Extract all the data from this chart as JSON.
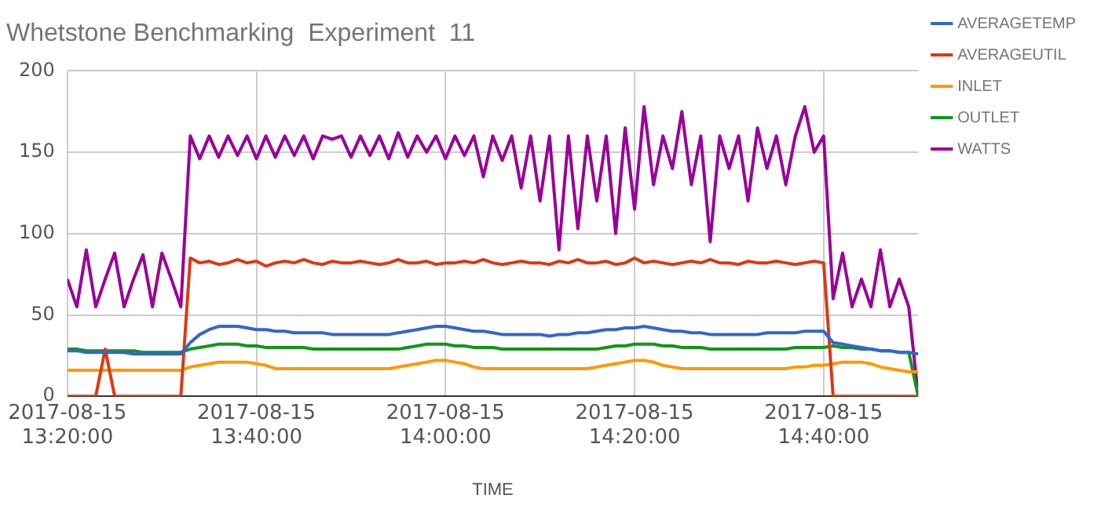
{
  "chart_data": {
    "type": "line",
    "title": "Whetstone Benchmarking  Experiment  11",
    "xlabel": "TIME",
    "x": [
      "2017-08-15T13:20",
      "2017-08-15T13:21",
      "2017-08-15T13:22",
      "2017-08-15T13:23",
      "2017-08-15T13:24",
      "2017-08-15T13:25",
      "2017-08-15T13:26",
      "2017-08-15T13:27",
      "2017-08-15T13:28",
      "2017-08-15T13:29",
      "2017-08-15T13:30",
      "2017-08-15T13:31",
      "2017-08-15T13:32",
      "2017-08-15T13:33",
      "2017-08-15T13:34",
      "2017-08-15T13:35",
      "2017-08-15T13:36",
      "2017-08-15T13:37",
      "2017-08-15T13:38",
      "2017-08-15T13:39",
      "2017-08-15T13:40",
      "2017-08-15T13:41",
      "2017-08-15T13:42",
      "2017-08-15T13:43",
      "2017-08-15T13:44",
      "2017-08-15T13:45",
      "2017-08-15T13:46",
      "2017-08-15T13:47",
      "2017-08-15T13:48",
      "2017-08-15T13:49",
      "2017-08-15T13:50",
      "2017-08-15T13:51",
      "2017-08-15T13:52",
      "2017-08-15T13:53",
      "2017-08-15T13:54",
      "2017-08-15T13:55",
      "2017-08-15T13:56",
      "2017-08-15T13:57",
      "2017-08-15T13:58",
      "2017-08-15T13:59",
      "2017-08-15T14:00",
      "2017-08-15T14:01",
      "2017-08-15T14:02",
      "2017-08-15T14:03",
      "2017-08-15T14:04",
      "2017-08-15T14:05",
      "2017-08-15T14:06",
      "2017-08-15T14:07",
      "2017-08-15T14:08",
      "2017-08-15T14:09",
      "2017-08-15T14:10",
      "2017-08-15T14:11",
      "2017-08-15T14:12",
      "2017-08-15T14:13",
      "2017-08-15T14:14",
      "2017-08-15T14:15",
      "2017-08-15T14:16",
      "2017-08-15T14:17",
      "2017-08-15T14:18",
      "2017-08-15T14:19",
      "2017-08-15T14:20",
      "2017-08-15T14:21",
      "2017-08-15T14:22",
      "2017-08-15T14:23",
      "2017-08-15T14:24",
      "2017-08-15T14:25",
      "2017-08-15T14:26",
      "2017-08-15T14:27",
      "2017-08-15T14:28",
      "2017-08-15T14:29",
      "2017-08-15T14:30",
      "2017-08-15T14:31",
      "2017-08-15T14:32",
      "2017-08-15T14:33",
      "2017-08-15T14:34",
      "2017-08-15T14:35",
      "2017-08-15T14:36",
      "2017-08-15T14:37",
      "2017-08-15T14:38",
      "2017-08-15T14:39",
      "2017-08-15T14:40",
      "2017-08-15T14:41",
      "2017-08-15T14:42",
      "2017-08-15T14:43",
      "2017-08-15T14:44",
      "2017-08-15T14:45",
      "2017-08-15T14:46",
      "2017-08-15T14:47",
      "2017-08-15T14:48",
      "2017-08-15T14:49",
      "2017-08-15T14:50"
    ],
    "series": [
      {
        "name": "AVERAGETEMP",
        "color": "#3366cc",
        "values": [
          28,
          28,
          27,
          27,
          27,
          27,
          27,
          26,
          26,
          26,
          26,
          26,
          26,
          33,
          38,
          41,
          43,
          43,
          43,
          42,
          41,
          41,
          40,
          40,
          39,
          39,
          39,
          39,
          38,
          38,
          38,
          38,
          38,
          38,
          38,
          39,
          40,
          41,
          42,
          43,
          43,
          42,
          41,
          40,
          40,
          39,
          38,
          38,
          38,
          38,
          38,
          37,
          38,
          38,
          39,
          39,
          40,
          41,
          41,
          42,
          42,
          43,
          42,
          41,
          40,
          40,
          39,
          39,
          38,
          38,
          38,
          38,
          38,
          38,
          39,
          39,
          39,
          39,
          40,
          40,
          40,
          33,
          32,
          31,
          30,
          29,
          28,
          28,
          27,
          27,
          26
        ]
      },
      {
        "name": "AVERAGEUTIL",
        "color": "#dc3912",
        "values": [
          0,
          0,
          0,
          0,
          29,
          0,
          0,
          0,
          0,
          0,
          0,
          0,
          0,
          85,
          82,
          83,
          81,
          82,
          84,
          82,
          83,
          80,
          82,
          83,
          82,
          84,
          82,
          81,
          83,
          82,
          82,
          83,
          82,
          81,
          82,
          84,
          82,
          82,
          83,
          81,
          82,
          82,
          83,
          82,
          84,
          82,
          81,
          82,
          83,
          82,
          82,
          81,
          83,
          82,
          84,
          82,
          82,
          83,
          81,
          82,
          85,
          82,
          83,
          82,
          81,
          82,
          83,
          82,
          84,
          82,
          82,
          81,
          83,
          82,
          82,
          83,
          82,
          81,
          82,
          83,
          82,
          0,
          0,
          0,
          0,
          0,
          0,
          0,
          0,
          0,
          0
        ]
      },
      {
        "name": "INLET",
        "color": "#ff9900",
        "values": [
          16,
          16,
          16,
          16,
          16,
          16,
          16,
          16,
          16,
          16,
          16,
          16,
          16,
          18,
          19,
          20,
          21,
          21,
          21,
          21,
          20,
          19,
          17,
          17,
          17,
          17,
          17,
          17,
          17,
          17,
          17,
          17,
          17,
          17,
          17,
          18,
          19,
          20,
          21,
          22,
          22,
          21,
          20,
          18,
          17,
          17,
          17,
          17,
          17,
          17,
          17,
          17,
          17,
          17,
          17,
          17,
          18,
          19,
          20,
          21,
          22,
          22,
          21,
          19,
          18,
          17,
          17,
          17,
          17,
          17,
          17,
          17,
          17,
          17,
          17,
          17,
          17,
          18,
          18,
          19,
          19,
          20,
          21,
          21,
          21,
          20,
          18,
          17,
          16,
          15,
          15
        ]
      },
      {
        "name": "OUTLET",
        "color": "#109618",
        "values": [
          29,
          29,
          28,
          28,
          28,
          28,
          28,
          28,
          27,
          27,
          27,
          27,
          27,
          29,
          30,
          31,
          32,
          32,
          32,
          31,
          31,
          30,
          30,
          30,
          30,
          30,
          29,
          29,
          29,
          29,
          29,
          29,
          29,
          29,
          29,
          29,
          30,
          31,
          32,
          32,
          32,
          31,
          31,
          30,
          30,
          30,
          29,
          29,
          29,
          29,
          29,
          29,
          29,
          29,
          29,
          29,
          29,
          30,
          31,
          31,
          32,
          32,
          32,
          31,
          31,
          30,
          30,
          30,
          29,
          29,
          29,
          29,
          29,
          29,
          29,
          29,
          29,
          30,
          30,
          30,
          30,
          31,
          30,
          30,
          29,
          29,
          28,
          28,
          27,
          27,
          0
        ]
      },
      {
        "name": "WATTS",
        "color": "#990099",
        "values": [
          72,
          55,
          90,
          55,
          72,
          88,
          55,
          72,
          87,
          55,
          88,
          72,
          55,
          160,
          146,
          160,
          147,
          160,
          148,
          160,
          146,
          160,
          147,
          160,
          148,
          160,
          146,
          160,
          158,
          160,
          147,
          160,
          148,
          160,
          146,
          162,
          147,
          160,
          150,
          160,
          146,
          160,
          148,
          160,
          135,
          160,
          145,
          160,
          128,
          160,
          120,
          160,
          90,
          160,
          103,
          160,
          120,
          160,
          100,
          165,
          115,
          178,
          130,
          160,
          140,
          175,
          130,
          160,
          95,
          160,
          140,
          160,
          120,
          165,
          140,
          160,
          130,
          160,
          178,
          150,
          160,
          60,
          88,
          55,
          72,
          55,
          90,
          55,
          72,
          55,
          0
        ]
      }
    ],
    "xlim": [
      "2017-08-15T13:20",
      "2017-08-15T14:50"
    ],
    "xticks": [
      {
        "value": "2017-08-15T13:20",
        "label": "2017-08-15 13:20:00"
      },
      {
        "value": "2017-08-15T13:40",
        "label": "2017-08-15 13:40:00"
      },
      {
        "value": "2017-08-15T14:00",
        "label": "2017-08-15 14:00:00"
      },
      {
        "value": "2017-08-15T14:20",
        "label": "2017-08-15 14:20:00"
      },
      {
        "value": "2017-08-15T14:40",
        "label": "2017-08-15 14:40:00"
      }
    ],
    "ylim": [
      0,
      200
    ],
    "yticks": [
      0,
      50,
      100,
      150,
      200
    ],
    "grid": true,
    "legend": "top right"
  }
}
